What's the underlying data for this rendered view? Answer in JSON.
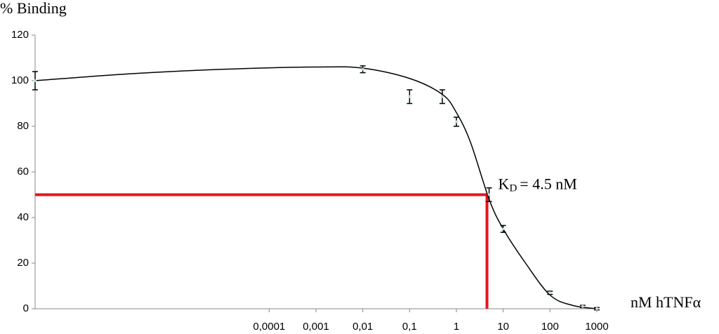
{
  "chart_data": {
    "type": "scatter",
    "y_label": "% Binding",
    "x_label": "nM hTNFα",
    "log_x": true,
    "xlim": [
      1e-09,
      1000
    ],
    "xticks": [
      {
        "value": 0.0001,
        "label": "0,0001"
      },
      {
        "value": 0.001,
        "label": "0,001"
      },
      {
        "value": 0.01,
        "label": "0,01"
      },
      {
        "value": 0.1,
        "label": "0,1"
      },
      1,
      10,
      100,
      1000
    ],
    "ylim": [
      0,
      120
    ],
    "yticks": [
      0,
      20,
      40,
      60,
      80,
      100,
      120
    ],
    "series": [
      {
        "color": "#000000",
        "marker_color": "#b8dde0",
        "x": [
          1e-09,
          0.01,
          0.1,
          0.5,
          1,
          5,
          10,
          100,
          500,
          1000
        ],
        "values": [
          100,
          105,
          93,
          93,
          82,
          50,
          35,
          7,
          1,
          0
        ],
        "errors": [
          4,
          1.5,
          3,
          3,
          2,
          3,
          1.5,
          0.7,
          0.5,
          0.5
        ]
      }
    ],
    "fit": {
      "color": "#000000",
      "x": [
        1e-09,
        1e-07,
        1e-05,
        0.001,
        0.01,
        0.1,
        0.5,
        1,
        2,
        5,
        10,
        30,
        100,
        300,
        1000
      ],
      "values": [
        100,
        103,
        105,
        106,
        105.5,
        101,
        94,
        86,
        73,
        48,
        35,
        20,
        6,
        1.5,
        0
      ]
    },
    "kd": {
      "symbol": "K",
      "subscript": "D",
      "text": "= 4.5 nM",
      "value": 4.5,
      "level": 50,
      "color": "#e8141b"
    }
  }
}
